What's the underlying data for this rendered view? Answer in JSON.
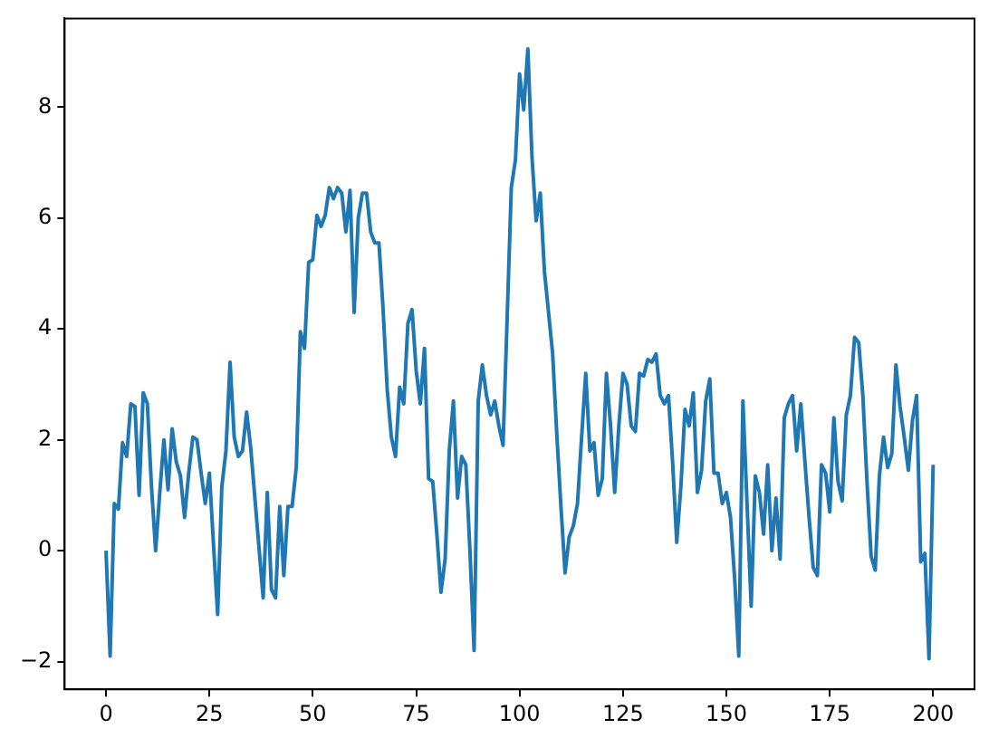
{
  "chart_data": {
    "type": "line",
    "x": [
      0,
      1,
      2,
      3,
      4,
      5,
      6,
      7,
      8,
      9,
      10,
      11,
      12,
      13,
      14,
      15,
      16,
      17,
      18,
      19,
      20,
      21,
      22,
      23,
      24,
      25,
      26,
      27,
      28,
      29,
      30,
      31,
      32,
      33,
      34,
      35,
      36,
      37,
      38,
      39,
      40,
      41,
      42,
      43,
      44,
      45,
      46,
      47,
      48,
      49,
      50,
      51,
      52,
      53,
      54,
      55,
      56,
      57,
      58,
      59,
      60,
      61,
      62,
      63,
      64,
      65,
      66,
      67,
      68,
      69,
      70,
      71,
      72,
      73,
      74,
      75,
      76,
      77,
      78,
      79,
      80,
      81,
      82,
      83,
      84,
      85,
      86,
      87,
      88,
      89,
      90,
      91,
      92,
      93,
      94,
      95,
      96,
      97,
      98,
      99,
      100,
      101,
      102,
      103,
      104,
      105,
      106,
      107,
      108,
      109,
      110,
      111,
      112,
      113,
      114,
      115,
      116,
      117,
      118,
      119,
      120,
      121,
      122,
      123,
      124,
      125,
      126,
      127,
      128,
      129,
      130,
      131,
      132,
      133,
      134,
      135,
      136,
      137,
      138,
      139,
      140,
      141,
      142,
      143,
      144,
      145,
      146,
      147,
      148,
      149,
      150,
      151,
      152,
      153,
      154,
      155,
      156,
      157,
      158,
      159,
      160,
      161,
      162,
      163,
      164,
      165,
      166,
      167,
      168,
      169,
      170,
      171,
      172,
      173,
      174,
      175,
      176,
      177,
      178,
      179,
      180,
      181,
      182,
      183,
      184,
      185,
      186,
      187,
      188,
      189,
      190,
      191,
      192,
      193,
      194,
      195,
      196,
      197,
      198,
      199,
      200
    ],
    "series": [
      {
        "color": "#1f77b4",
        "values": [
          0.0,
          -1.9,
          0.85,
          0.75,
          1.95,
          1.7,
          2.65,
          2.6,
          1.0,
          2.85,
          2.65,
          1.15,
          0.0,
          1.05,
          2.0,
          1.1,
          2.2,
          1.6,
          1.35,
          0.6,
          1.4,
          2.05,
          2.0,
          1.4,
          0.85,
          1.4,
          0.1,
          -1.15,
          1.15,
          1.8,
          3.4,
          2.05,
          1.7,
          1.8,
          2.5,
          1.85,
          0.95,
          0.05,
          -0.85,
          1.05,
          -0.7,
          -0.85,
          0.8,
          -0.45,
          0.8,
          0.8,
          1.5,
          3.95,
          3.65,
          5.2,
          5.25,
          6.05,
          5.85,
          6.05,
          6.55,
          6.35,
          6.55,
          6.45,
          5.75,
          6.5,
          4.3,
          6.0,
          6.45,
          6.45,
          5.75,
          5.55,
          5.55,
          4.35,
          2.9,
          2.05,
          1.7,
          2.95,
          2.65,
          4.1,
          4.35,
          3.25,
          2.65,
          3.65,
          1.3,
          1.25,
          0.3,
          -0.75,
          -0.15,
          1.8,
          2.7,
          0.95,
          1.7,
          1.55,
          0.0,
          -1.8,
          2.7,
          3.35,
          2.8,
          2.45,
          2.7,
          2.25,
          1.9,
          4.2,
          6.55,
          7.05,
          8.6,
          7.95,
          9.05,
          7.1,
          5.95,
          6.45,
          5.05,
          4.3,
          3.55,
          2.1,
          0.8,
          -0.4,
          0.25,
          0.45,
          0.85,
          2.05,
          3.2,
          1.8,
          1.95,
          1.0,
          1.3,
          3.2,
          2.25,
          1.05,
          2.25,
          3.2,
          3.0,
          2.25,
          2.15,
          3.2,
          3.15,
          3.45,
          3.4,
          3.55,
          2.8,
          2.65,
          2.8,
          1.6,
          0.15,
          1.15,
          2.55,
          2.25,
          2.85,
          1.05,
          1.45,
          2.7,
          3.1,
          1.4,
          1.4,
          0.85,
          1.05,
          0.6,
          -0.5,
          -1.9,
          2.7,
          0.85,
          -1.0,
          1.35,
          1.05,
          0.3,
          1.55,
          0.0,
          0.95,
          -0.15,
          2.4,
          2.65,
          2.8,
          1.8,
          2.65,
          1.6,
          0.6,
          -0.3,
          -0.45,
          1.55,
          1.4,
          0.7,
          2.4,
          1.25,
          0.9,
          2.45,
          2.8,
          3.85,
          3.75,
          2.8,
          1.25,
          -0.1,
          -0.35,
          1.35,
          2.05,
          1.5,
          1.75,
          3.35,
          2.6,
          2.05,
          1.45,
          2.35,
          2.8,
          -0.2,
          -0.05,
          -1.95,
          1.55
        ]
      }
    ],
    "xlim": [
      -10,
      210
    ],
    "xticks": [
      0,
      25,
      50,
      75,
      100,
      125,
      150,
      175,
      200
    ],
    "ylim": [
      -2.5,
      9.6
    ],
    "yticks": [
      -2,
      0,
      2,
      4,
      6,
      8
    ],
    "grid": false,
    "legend": false,
    "marker": "none",
    "line_style": "solid"
  }
}
